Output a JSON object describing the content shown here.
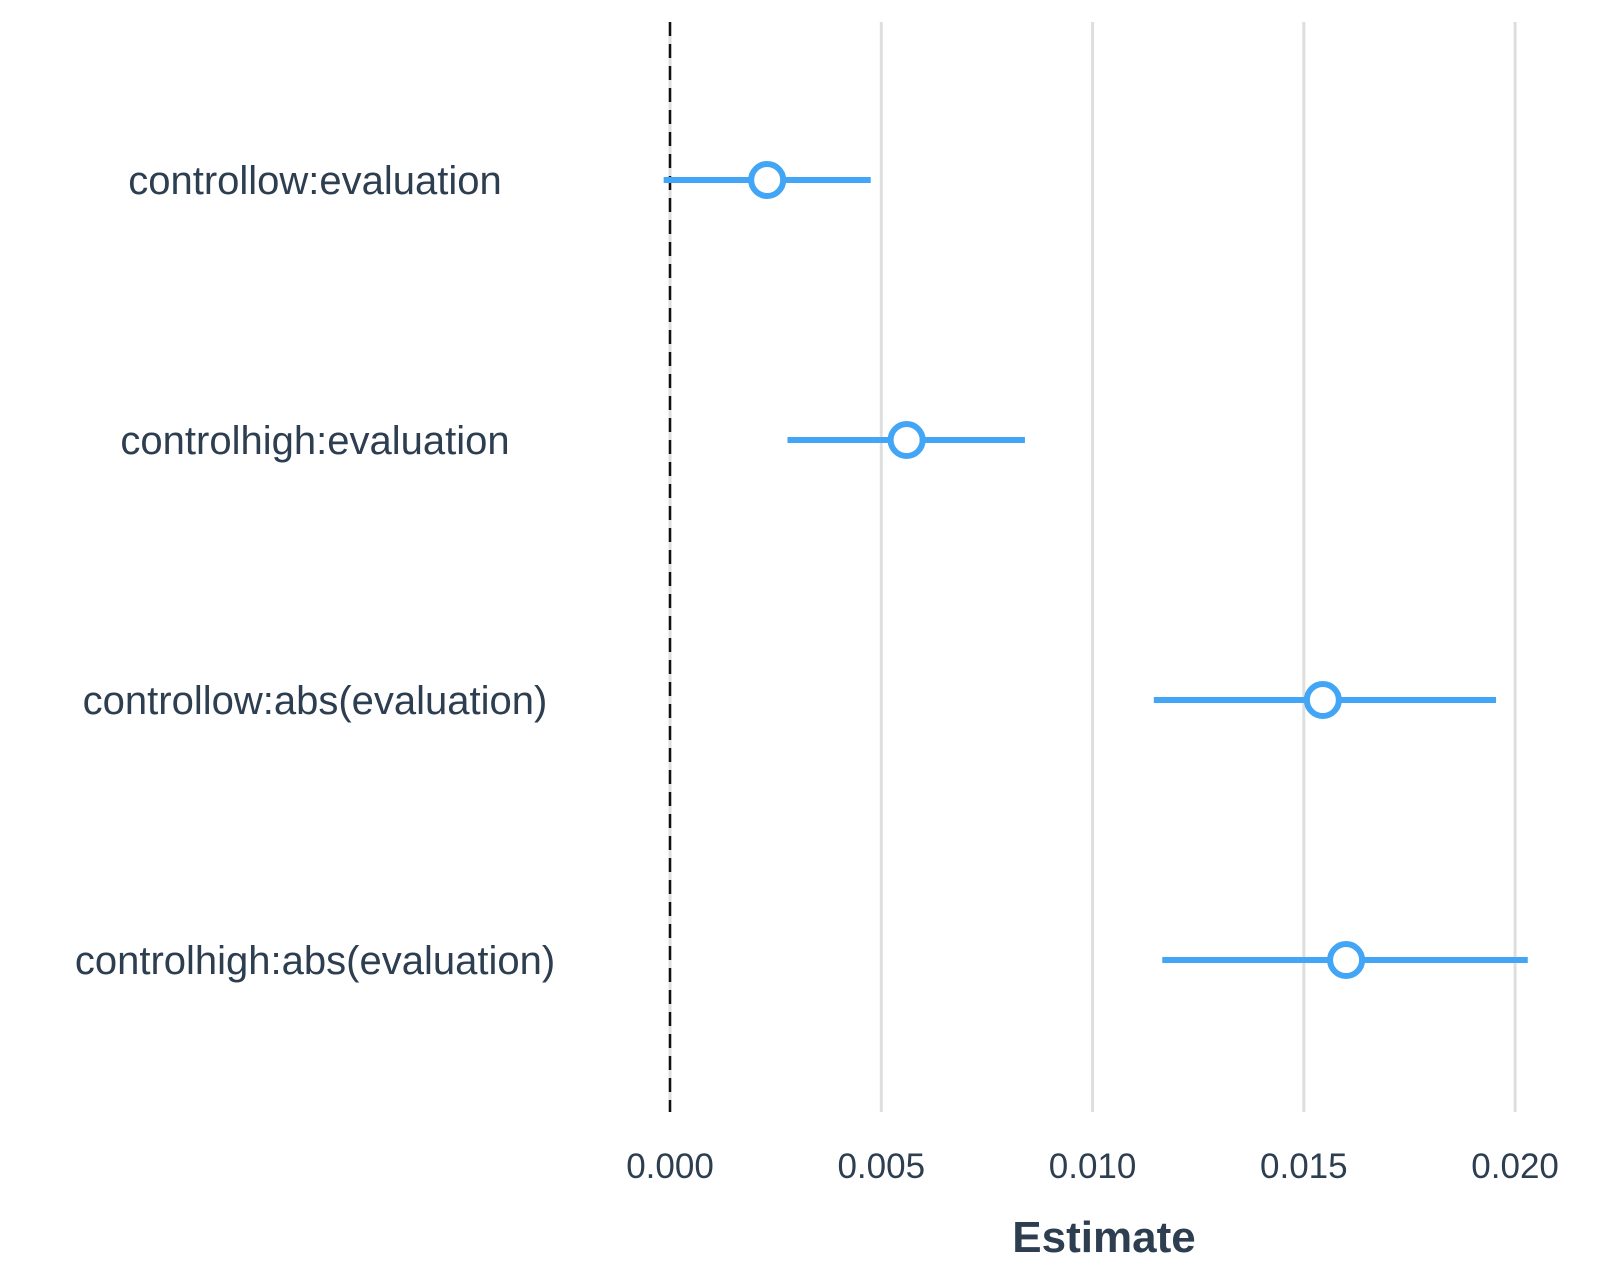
{
  "chart_data": {
    "type": "scatter",
    "subtype": "coefficient-forest-plot",
    "xlabel": "Estimate",
    "ylabel": "",
    "xlim": [
      0.0,
      0.0204
    ],
    "x_ticks": [
      0.0,
      0.005,
      0.01,
      0.015,
      0.02
    ],
    "x_tick_labels": [
      "0.000",
      "0.005",
      "0.010",
      "0.015",
      "0.020"
    ],
    "reference_line": {
      "x": 0.0,
      "style": "dashed",
      "color": "#111111"
    },
    "grid": "vertical",
    "grid_color": "#dedede",
    "point_color": "#42a5f5",
    "text_color": "#2c3e50",
    "terms": [
      {
        "label": "controllow:evaluation",
        "estimate": 0.0023,
        "ci_low": -0.00015,
        "ci_high": 0.00475
      },
      {
        "label": "controlhigh:evaluation",
        "estimate": 0.0056,
        "ci_low": 0.00278,
        "ci_high": 0.0084
      },
      {
        "label": "controllow:abs(evaluation)",
        "estimate": 0.01545,
        "ci_low": 0.01145,
        "ci_high": 0.01955
      },
      {
        "label": "controlhigh:abs(evaluation)",
        "estimate": 0.016,
        "ci_low": 0.01165,
        "ci_high": 0.0203
      }
    ]
  }
}
